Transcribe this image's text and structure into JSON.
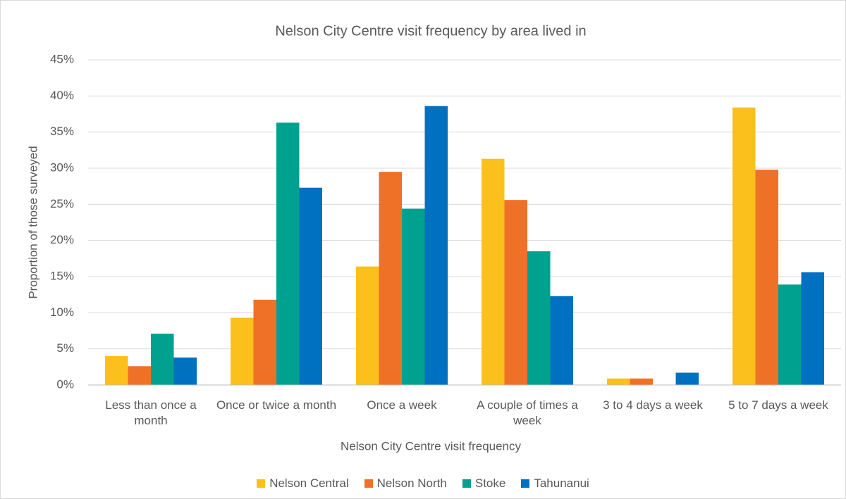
{
  "chart_data": {
    "type": "bar",
    "title": "Nelson City Centre visit frequency by area lived in",
    "x_label": "Nelson City Centre visit frequency",
    "y_label": "Proportion of those surveyed",
    "categories": [
      "Less than once a month",
      "Once or twice a month",
      "Once a week",
      "A couple of times a week",
      "3 to 4 days a week",
      "5 to 7 days a week"
    ],
    "series": [
      {
        "name": "Nelson Central",
        "color": "#fbc01b",
        "values": [
          4.0,
          9.3,
          16.4,
          31.3,
          0.9,
          38.4
        ]
      },
      {
        "name": "Nelson North",
        "color": "#ef7127",
        "values": [
          2.6,
          11.8,
          29.5,
          25.6,
          0.9,
          29.8
        ]
      },
      {
        "name": "Stoke",
        "color": "#00a18f",
        "values": [
          7.1,
          36.3,
          24.4,
          18.5,
          0,
          13.9
        ]
      },
      {
        "name": "Tahunanui",
        "color": "#0070c0",
        "values": [
          3.8,
          27.3,
          38.6,
          12.3,
          1.7,
          15.6
        ]
      }
    ],
    "ylim": [
      0,
      45
    ],
    "yticks": [
      {
        "value": 0,
        "label": "0%"
      },
      {
        "value": 5,
        "label": "5%"
      },
      {
        "value": 10,
        "label": "10%"
      },
      {
        "value": 15,
        "label": "15%"
      },
      {
        "value": 20,
        "label": "20%"
      },
      {
        "value": 25,
        "label": "25%"
      },
      {
        "value": 30,
        "label": "30%"
      },
      {
        "value": 35,
        "label": "35%"
      },
      {
        "value": 40,
        "label": "40%"
      },
      {
        "value": 45,
        "label": "45%"
      }
    ],
    "grid": true,
    "legend": "bottom"
  }
}
